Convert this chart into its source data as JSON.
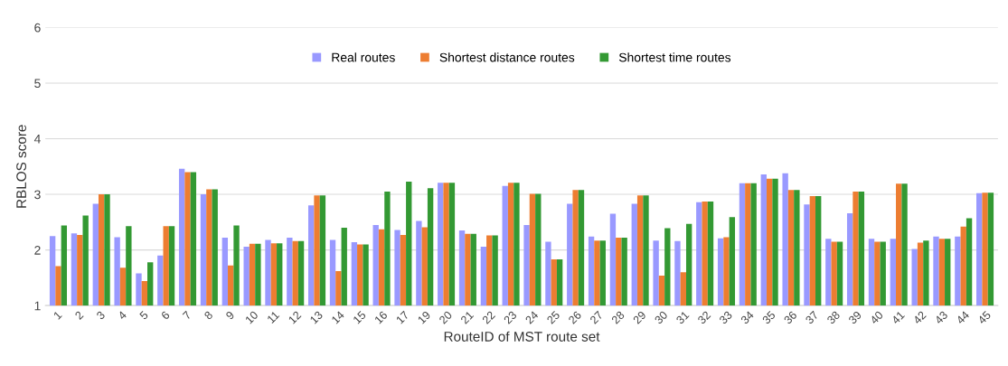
{
  "chart_data": {
    "type": "bar",
    "xlabel": "RouteID of MST route set",
    "ylabel": "RBLOS score",
    "categories": [
      "1",
      "2",
      "3",
      "4",
      "5",
      "6",
      "7",
      "8",
      "9",
      "10",
      "11",
      "12",
      "13",
      "14",
      "15",
      "16",
      "17",
      "19",
      "20",
      "21",
      "22",
      "23",
      "24",
      "25",
      "26",
      "27",
      "28",
      "29",
      "30",
      "31",
      "32",
      "33",
      "34",
      "35",
      "36",
      "37",
      "38",
      "39",
      "40",
      "41",
      "42",
      "43",
      "44",
      "45"
    ],
    "series": [
      {
        "name": "Real routes",
        "color": "#9999ff",
        "values": [
          2.25,
          2.3,
          2.83,
          2.23,
          1.58,
          1.9,
          3.46,
          3.0,
          2.22,
          2.06,
          2.18,
          2.22,
          2.8,
          2.18,
          2.14,
          2.45,
          2.36,
          2.52,
          3.21,
          2.35,
          2.06,
          3.15,
          2.45,
          2.15,
          2.83,
          2.24,
          2.65,
          2.83,
          2.17,
          2.16,
          2.86,
          2.21,
          3.2,
          3.36,
          3.38,
          2.82,
          2.2,
          2.66,
          2.2,
          2.2,
          2.02,
          2.24,
          2.24,
          3.02
        ]
      },
      {
        "name": "Shortest distance routes",
        "color": "#ed7d31",
        "values": [
          1.71,
          2.27,
          3.0,
          1.68,
          1.44,
          2.43,
          3.4,
          3.09,
          1.72,
          2.11,
          2.12,
          2.16,
          2.98,
          1.62,
          2.1,
          2.37,
          2.27,
          2.41,
          3.21,
          2.29,
          2.26,
          3.21,
          3.01,
          1.83,
          3.08,
          2.17,
          2.22,
          2.98,
          1.54,
          1.6,
          2.87,
          2.23,
          3.2,
          3.28,
          3.08,
          2.97,
          2.15,
          3.05,
          2.15,
          3.19,
          2.13,
          2.2,
          2.42,
          3.03
        ]
      },
      {
        "name": "Shortest time routes",
        "color": "#339933",
        "values": [
          2.44,
          2.62,
          3.0,
          2.43,
          1.78,
          2.43,
          3.4,
          3.09,
          2.44,
          2.11,
          2.12,
          2.16,
          2.98,
          2.4,
          2.1,
          3.05,
          3.23,
          3.11,
          3.21,
          2.29,
          2.26,
          3.21,
          3.01,
          1.83,
          3.08,
          2.17,
          2.22,
          2.98,
          2.39,
          2.47,
          2.87,
          2.59,
          3.2,
          3.28,
          3.08,
          2.97,
          2.15,
          3.05,
          2.15,
          3.19,
          2.17,
          2.2,
          2.57,
          3.03
        ]
      }
    ],
    "ylim": [
      1,
      6
    ],
    "yticks": [
      1,
      2,
      3,
      4,
      5,
      6
    ],
    "grid": "y",
    "legend": "top"
  }
}
